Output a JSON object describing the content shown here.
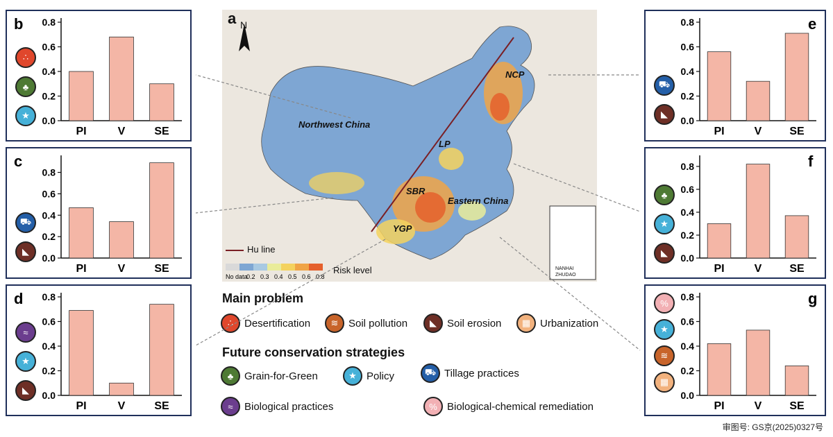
{
  "colors": {
    "bar": "#f4b6a6",
    "frame": "#1f2f5a",
    "desertification": "#e0472c",
    "soil_pollution": "#c8642a",
    "soil_erosion": "#6e2f26",
    "urbanization": "#f2b27e",
    "grain_for_green": "#4e7a34",
    "policy": "#46b1d8",
    "tillage": "#245fa8",
    "biological": "#6b3d8e",
    "bio_chem": "#f2b0b4",
    "hu_line": "#7a1f24"
  },
  "map": {
    "panel_label": "a",
    "north": "N",
    "regions": [
      "Northwest China",
      "NCP",
      "LP",
      "SBR",
      "Eastern China",
      "YGP"
    ],
    "hu_line_label": "Hu line",
    "risk_label": "Risk level",
    "scale_ticks": [
      "No data",
      "0.2",
      "0.3",
      "0.4",
      "0.5",
      "0.6",
      "0.8"
    ],
    "scale_colors": [
      "#d9d9d9",
      "#7ea6d3",
      "#a8c9e2",
      "#e9ec9a",
      "#f4d25e",
      "#f0a446",
      "#e5602c"
    ],
    "inset_label_1": "NANHAI",
    "inset_label_2": "ZHUDAO"
  },
  "legend": {
    "main_problem_title": "Main problem",
    "main_problems": [
      "Desertification",
      "Soil pollution",
      "Soil erosion",
      "Urbanization"
    ],
    "strategies_title": "Future conservation strategies",
    "strategies_row1": [
      "Grain-for-Green",
      "Policy",
      "Tillage practices"
    ],
    "strategies_row2": [
      "Biological practices",
      "Biological-chemical remediation"
    ]
  },
  "approval_number": "审图号: GS京(2025)0327号",
  "chart_data": [
    {
      "panel": "b",
      "type": "bar",
      "categories": [
        "PI",
        "V",
        "SE"
      ],
      "values": [
        0.4,
        0.68,
        0.3
      ],
      "ylim": [
        0,
        0.8
      ],
      "yticks": [
        "0.0",
        "0.2",
        "0.4",
        "0.6",
        "0.8"
      ],
      "icons": [
        "desertification",
        "grain_for_green",
        "policy"
      ]
    },
    {
      "panel": "c",
      "type": "bar",
      "categories": [
        "PI",
        "V",
        "SE"
      ],
      "values": [
        0.47,
        0.34,
        0.89
      ],
      "ylim": [
        0,
        0.92
      ],
      "yticks": [
        "0.0",
        "0.2",
        "0.4",
        "0.6",
        "0.8"
      ],
      "icons": [
        "tillage",
        "soil_erosion"
      ]
    },
    {
      "panel": "d",
      "type": "bar",
      "categories": [
        "PI",
        "V",
        "SE"
      ],
      "values": [
        0.69,
        0.1,
        0.74
      ],
      "ylim": [
        0,
        0.8
      ],
      "yticks": [
        "0.0",
        "0.2",
        "0.4",
        "0.6",
        "0.8"
      ],
      "icons": [
        "biological",
        "policy",
        "soil_erosion"
      ]
    },
    {
      "panel": "e",
      "type": "bar",
      "categories": [
        "PI",
        "V",
        "SE"
      ],
      "values": [
        0.56,
        0.32,
        0.71
      ],
      "ylim": [
        0,
        0.8
      ],
      "yticks": [
        "0.0",
        "0.2",
        "0.4",
        "0.6",
        "0.8"
      ],
      "icons": [
        "tillage",
        "soil_erosion"
      ]
    },
    {
      "panel": "f",
      "type": "bar",
      "categories": [
        "PI",
        "V",
        "SE"
      ],
      "values": [
        0.3,
        0.82,
        0.37
      ],
      "ylim": [
        0,
        0.86
      ],
      "yticks": [
        "0.0",
        "0.2",
        "0.4",
        "0.6",
        "0.8"
      ],
      "icons": [
        "grain_for_green",
        "policy",
        "soil_erosion"
      ]
    },
    {
      "panel": "g",
      "type": "bar",
      "categories": [
        "PI",
        "V",
        "SE"
      ],
      "values": [
        0.42,
        0.53,
        0.24
      ],
      "ylim": [
        0,
        0.8
      ],
      "yticks": [
        "0.0",
        "0.2",
        "0.4",
        "0.6",
        "0.8"
      ],
      "icons": [
        "bio_chem",
        "policy",
        "soil_pollution",
        "urbanization"
      ]
    }
  ]
}
